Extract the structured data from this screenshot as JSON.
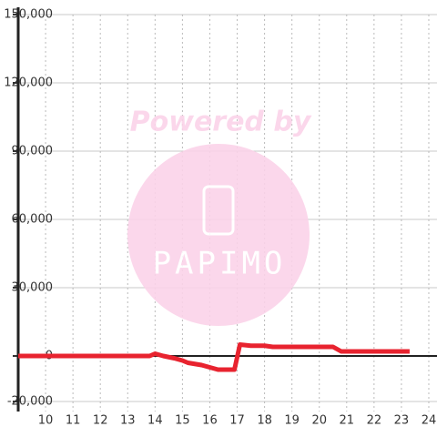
{
  "chart_data": {
    "type": "line",
    "watermark": {
      "line1": "Powered by",
      "line2": "PAPIMO"
    },
    "x": [
      9,
      13.8,
      14,
      14.3,
      14.7,
      15,
      15.2,
      15.7,
      16,
      16.3,
      16.9,
      17.1,
      17.5,
      18,
      18.3,
      20.5,
      20.8,
      21,
      23.3
    ],
    "series": [
      {
        "color": "#e8232f",
        "values": [
          0,
          0,
          1000,
          0,
          -1000,
          -2000,
          -3000,
          -4000,
          -5000,
          -6000,
          -6000,
          5000,
          4500,
          4500,
          4000,
          4000,
          2000,
          2000,
          2000
        ]
      }
    ],
    "xlim": [
      9,
      24.3
    ],
    "xticks": [
      10,
      11,
      12,
      13,
      14,
      15,
      16,
      17,
      18,
      19,
      20,
      21,
      22,
      23,
      24
    ],
    "ylim": [
      -20000,
      150000
    ],
    "yticks": [
      {
        "value": -20000,
        "label": "-20,000"
      },
      0,
      {
        "value": 30000,
        "label": "30,000"
      },
      {
        "value": 60000,
        "label": "60,000"
      },
      {
        "value": 90000,
        "label": "90,000"
      },
      {
        "value": 120000,
        "label": "120,000"
      },
      {
        "value": 150000,
        "label": "150,000"
      }
    ],
    "grid": true
  }
}
